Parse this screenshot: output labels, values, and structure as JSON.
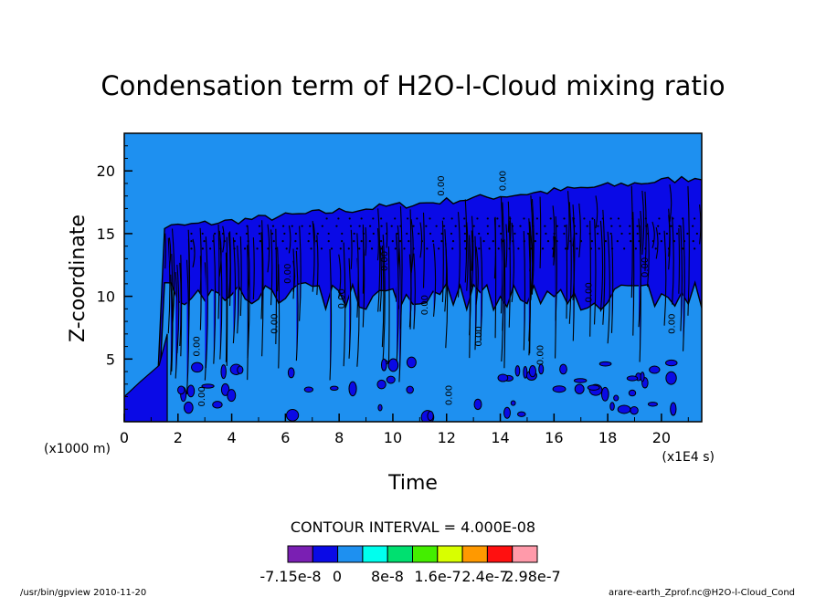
{
  "chart_data": {
    "type": "heatmap",
    "title": "Condensation term of H2O-l-Cloud mixing ratio",
    "xlabel": "Time",
    "ylabel": "Z-coordinate",
    "x_unit": "(x1E4 s)",
    "y_unit": "(x1000 m)",
    "xlim": [
      0,
      21.5
    ],
    "ylim": [
      0,
      23
    ],
    "x_ticks": [
      0,
      2,
      4,
      6,
      8,
      10,
      12,
      14,
      16,
      18,
      20
    ],
    "y_ticks": [
      5,
      10,
      15,
      20
    ],
    "contour_interval_text": "CONTOUR INTERVAL = 4.000E-08",
    "colorbar": {
      "colors": [
        "#7a1fb3",
        "#0a0ae6",
        "#1e90f0",
        "#00ffee",
        "#00e070",
        "#44ee00",
        "#d8ff00",
        "#ff9900",
        "#ff1010",
        "#ff9aaa"
      ],
      "labels": [
        "-7.15e-8",
        "0",
        "8e-8",
        "1.6e-7",
        "2.4e-7",
        "2.98e-7"
      ]
    },
    "cloud_layer": {
      "onset_time": 1.5,
      "top_height_start": 15.5,
      "top_height_end": 19.5,
      "band_bottom": 10,
      "fill_outside": "#1e90f0",
      "fill_cloud": "#0a0ae6"
    },
    "contour_labels": [
      "0.00"
    ]
  },
  "footer": {
    "left": "/usr/bin/gpview  2010-11-20",
    "right": "arare-earth_Zprof.nc@H2O-l-Cloud_Cond"
  }
}
